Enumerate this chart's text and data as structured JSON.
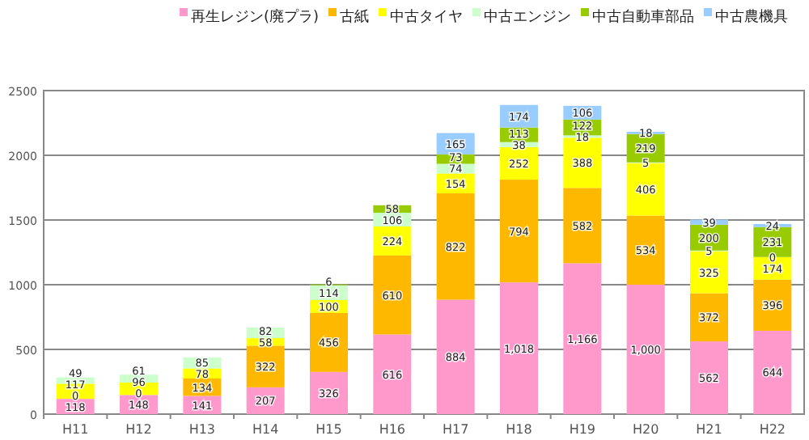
{
  "chart_data": {
    "type": "bar",
    "stacked": true,
    "legend": "top",
    "grid": "y",
    "ylim": [
      0,
      2500
    ],
    "yticks": [
      0,
      500,
      1000,
      1500,
      2000,
      2500
    ],
    "categories": [
      "H11",
      "H12",
      "H13",
      "H14",
      "H15",
      "H16",
      "H17",
      "H18",
      "H19",
      "H20",
      "H21",
      "H22"
    ],
    "series": [
      {
        "name": "再生レジン(廃プラ)",
        "color": "#ff99cc",
        "values": [
          118,
          148,
          141,
          207,
          326,
          616,
          884,
          1018,
          1166,
          1000,
          562,
          644
        ],
        "value_labels": [
          "118",
          "148",
          "141",
          "207",
          "326",
          "616",
          "884",
          "1,018",
          "1,166",
          "1,000",
          "562",
          "644"
        ]
      },
      {
        "name": "古紙",
        "color": "#ffb800",
        "values": [
          0,
          0,
          134,
          322,
          456,
          610,
          822,
          794,
          582,
          534,
          372,
          396
        ],
        "value_labels": [
          "0",
          "0",
          "134",
          "322",
          "456",
          "610",
          "822",
          "794",
          "582",
          "534",
          "372",
          "396"
        ]
      },
      {
        "name": "中古タイヤ",
        "color": "#ffff00",
        "values": [
          117,
          96,
          78,
          58,
          100,
          224,
          154,
          252,
          388,
          406,
          325,
          174
        ],
        "value_labels": [
          "117",
          "96",
          "78",
          "58",
          "100",
          "224",
          "154",
          "252",
          "388",
          "406",
          "325",
          "174"
        ]
      },
      {
        "name": "中古エンジン",
        "color": "#ccffcc",
        "values": [
          49,
          61,
          85,
          82,
          114,
          106,
          74,
          38,
          18,
          5,
          5,
          0
        ],
        "value_labels": [
          "49",
          "61",
          "85",
          "82",
          "114",
          "106",
          "74",
          "38",
          "18",
          "5",
          "5",
          "0"
        ]
      },
      {
        "name": "中古自動車部品",
        "color": "#99cc00",
        "values": [
          null,
          null,
          null,
          null,
          6,
          58,
          73,
          113,
          122,
          219,
          200,
          231
        ],
        "value_labels": [
          null,
          null,
          null,
          null,
          "6",
          "58",
          "73",
          "113",
          "122",
          "219",
          "200",
          "231"
        ]
      },
      {
        "name": "中古農機具",
        "color": "#99ccff",
        "values": [
          null,
          null,
          null,
          null,
          null,
          null,
          165,
          174,
          106,
          18,
          39,
          24
        ],
        "value_labels": [
          null,
          null,
          null,
          null,
          null,
          null,
          "165",
          "174",
          "106",
          "18",
          "39",
          "24"
        ]
      }
    ]
  }
}
